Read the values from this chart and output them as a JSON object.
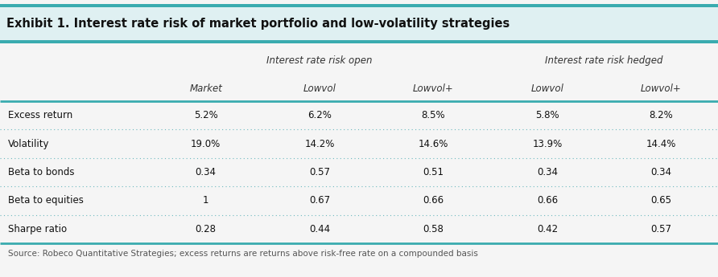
{
  "title": "Exhibit 1. Interest rate risk of market portfolio and low-volatility strategies",
  "col_headers": [
    "Market",
    "Lowvol",
    "Lowvol+",
    "Lowvol",
    "Lowvol+"
  ],
  "row_labels": [
    "Excess return",
    "Volatility",
    "Beta to bonds",
    "Beta to equities",
    "Sharpe ratio"
  ],
  "data": [
    [
      "5.2%",
      "6.2%",
      "8.5%",
      "5.8%",
      "8.2%"
    ],
    [
      "19.0%",
      "14.2%",
      "14.6%",
      "13.9%",
      "14.4%"
    ],
    [
      "0.34",
      "0.57",
      "0.51",
      "0.34",
      "0.34"
    ],
    [
      "1",
      "0.67",
      "0.66",
      "0.66",
      "0.65"
    ],
    [
      "0.28",
      "0.44",
      "0.58",
      "0.42",
      "0.57"
    ]
  ],
  "group1_label": "Interest rate risk open",
  "group2_label": "Interest rate risk hedged",
  "source_text": "Source: Robeco Quantitative Strategies; excess returns are returns above risk-free rate on a compounded basis",
  "teal_color": "#3aabaf",
  "title_bg_color": "#dff0f2",
  "bg_color": "#f5f5f5",
  "dotted_line_color": "#6ab8be",
  "text_color": "#111111",
  "header_color": "#333333",
  "source_color": "#555555",
  "title_fontsize": 10.5,
  "header_fontsize": 8.5,
  "data_fontsize": 8.5,
  "source_fontsize": 7.5
}
